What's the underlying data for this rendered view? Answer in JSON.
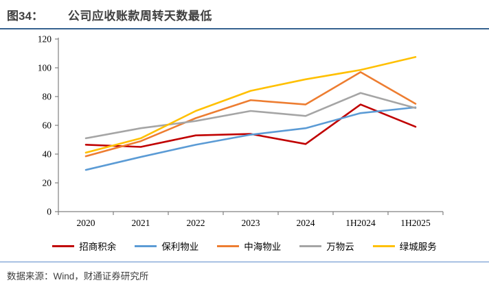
{
  "header": {
    "figure_label": "图34：",
    "title": "公司应收账款周转天数最低"
  },
  "chart_data": {
    "type": "line",
    "title": "公司应收账款周转天数最低",
    "categories": [
      "2020",
      "2021",
      "2022",
      "2023",
      "2024",
      "1H2024",
      "1H2025"
    ],
    "series": [
      {
        "name": "招商积余",
        "color": "#C00000",
        "values": [
          46.5,
          45,
          53,
          54,
          47,
          74.5,
          59
        ]
      },
      {
        "name": "保利物业",
        "color": "#5B9BD5",
        "values": [
          29,
          38,
          46.5,
          53.5,
          58,
          68.5,
          72.5
        ]
      },
      {
        "name": "中海物业",
        "color": "#ED7D31",
        "values": [
          38.5,
          49,
          65,
          77.5,
          74.5,
          97,
          75
        ]
      },
      {
        "name": "万物云",
        "color": "#A5A5A5",
        "values": [
          51,
          58,
          63,
          70,
          66.5,
          82.5,
          72
        ]
      },
      {
        "name": "绿城服务",
        "color": "#FFC000",
        "values": [
          41,
          51,
          70,
          84,
          92,
          98.5,
          107.5
        ]
      }
    ],
    "xlabel": "",
    "ylabel": "",
    "ylim": [
      0,
      120
    ],
    "y_ticks": [
      0,
      20,
      40,
      60,
      80,
      100,
      120
    ],
    "grid": false,
    "legend_position": "bottom",
    "axis_color": "#808080",
    "tick_label_color": "#000000"
  },
  "footer": {
    "source_text": "数据来源：Wind，财通证券研究所"
  }
}
